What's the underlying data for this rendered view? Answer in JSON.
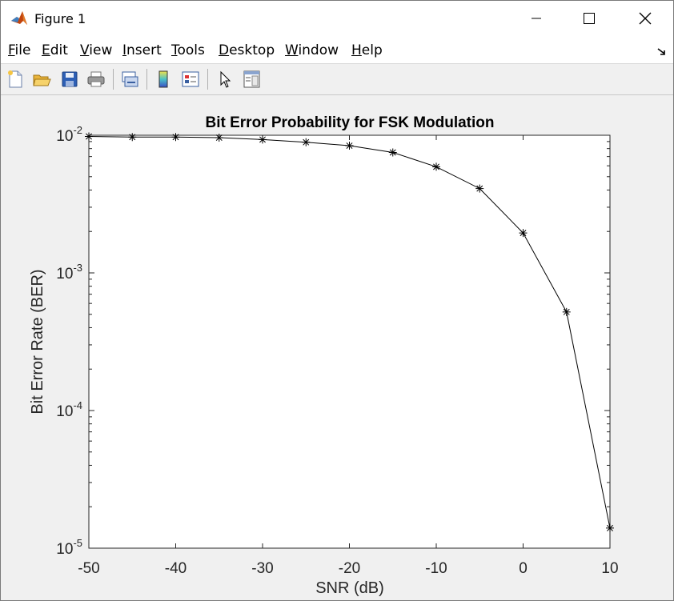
{
  "window": {
    "title": "Figure 1",
    "icons": [
      "matlab-logo-icon",
      "minimize-icon",
      "maximize-icon",
      "close-icon"
    ]
  },
  "menu": {
    "items": [
      "File",
      "Edit",
      "View",
      "Insert",
      "Tools",
      "Desktop",
      "Window",
      "Help"
    ]
  },
  "toolbar": {
    "icons": [
      "new-figure-icon",
      "open-file-icon",
      "save-icon",
      "print-icon",
      "link-plot-icon",
      "insert-colorbar-icon",
      "insert-legend-icon",
      "edit-plot-icon",
      "property-inspector-icon"
    ]
  },
  "chart_data": {
    "type": "line",
    "title": "Bit Error Probability for FSK Modulation",
    "xlabel": "SNR (dB)",
    "ylabel": "Bit Error Rate (BER)",
    "xlim": [
      -50,
      10
    ],
    "ylim": [
      1e-05,
      0.01
    ],
    "yscale": "log",
    "x_ticks": [
      -50,
      -40,
      -30,
      -20,
      -10,
      0,
      10
    ],
    "y_ticks": [
      {
        "value": 0.01,
        "base": "10",
        "exp": "-2"
      },
      {
        "value": 0.001,
        "base": "10",
        "exp": "-3"
      },
      {
        "value": 0.0001,
        "base": "10",
        "exp": "-4"
      },
      {
        "value": 1e-05,
        "base": "10",
        "exp": "-5"
      }
    ],
    "marker": "asterisk",
    "line_color": "#000000",
    "grid": false,
    "series": [
      {
        "x": [
          -50,
          -45,
          -40,
          -35,
          -30,
          -25,
          -20,
          -15,
          -10,
          -5,
          0,
          5,
          10
        ],
        "values": [
          0.0098,
          0.0097,
          0.0097,
          0.0096,
          0.0093,
          0.0089,
          0.0084,
          0.0075,
          0.0059,
          0.0041,
          0.00195,
          0.00052,
          1.4e-05
        ]
      }
    ]
  }
}
